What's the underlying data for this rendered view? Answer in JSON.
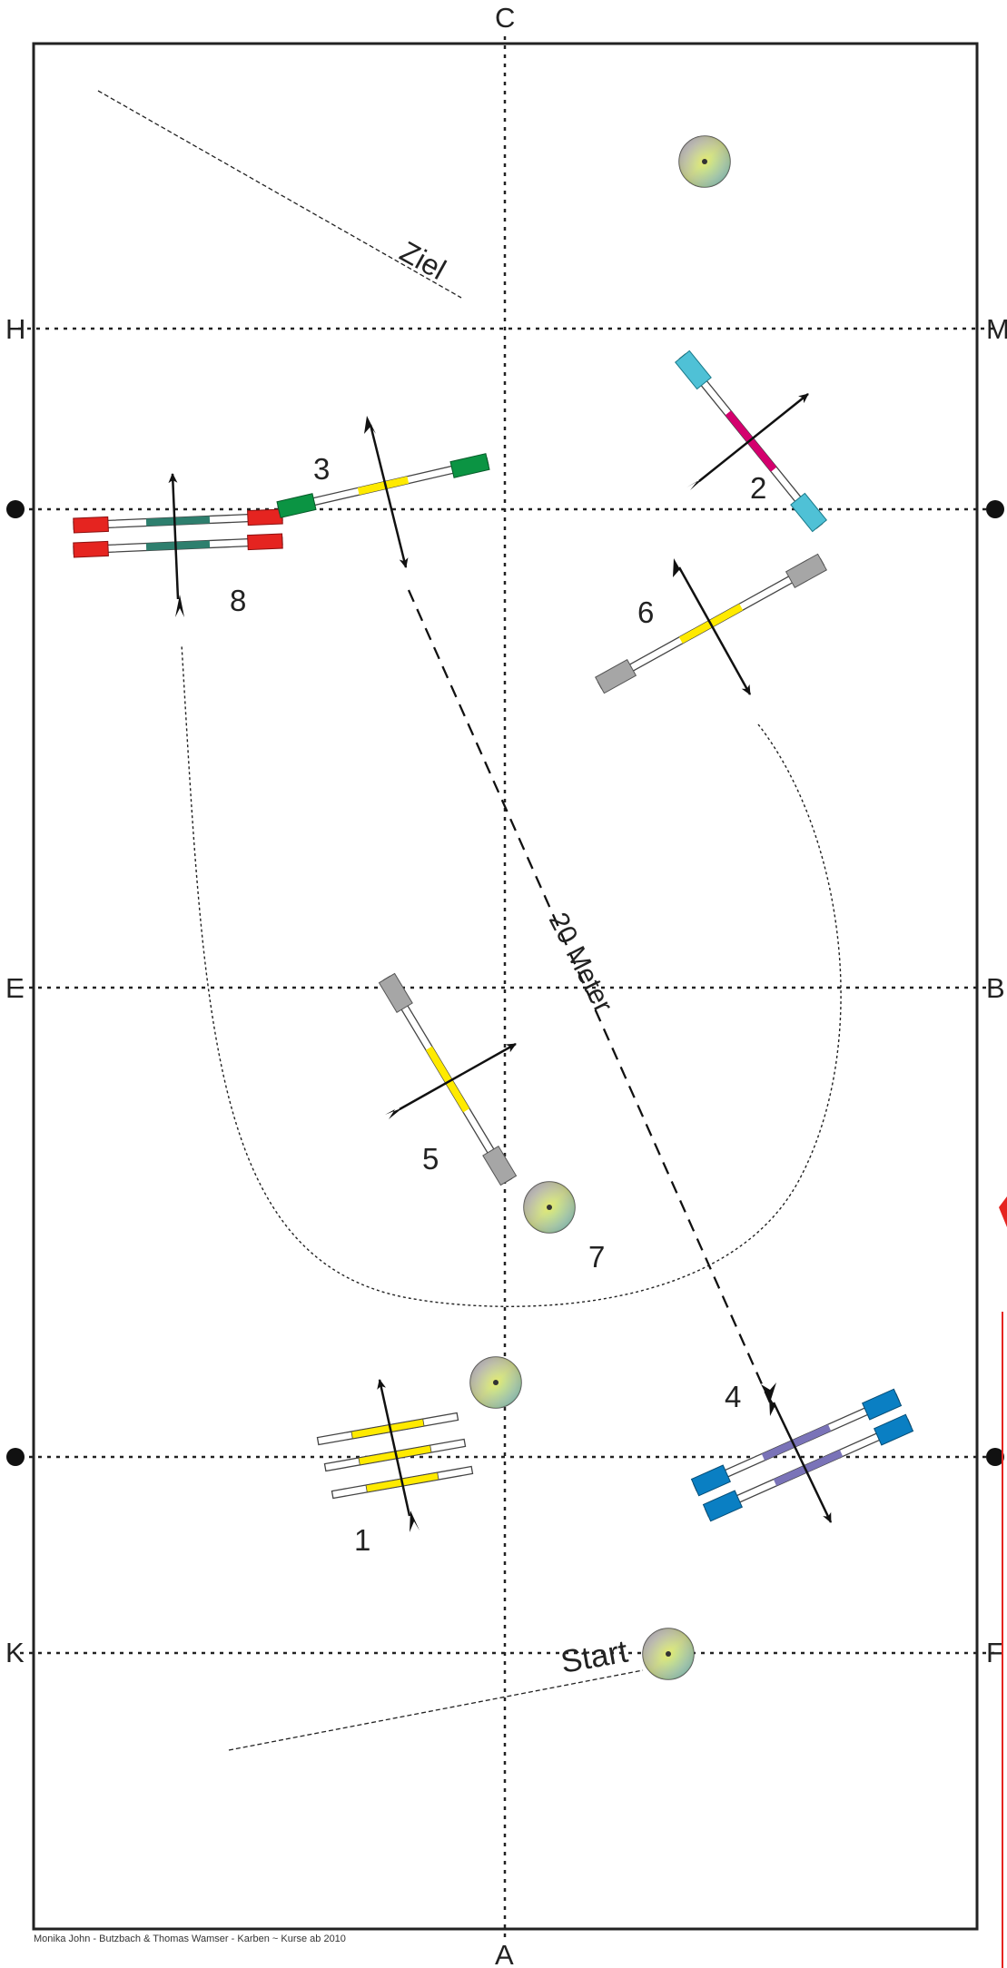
{
  "arena": {
    "letters": {
      "top": "C",
      "bottom": "A",
      "left_1": "H",
      "left_2": "E",
      "left_3": "K",
      "right_1": "M",
      "right_2": "B",
      "right_3": "F"
    }
  },
  "labels": {
    "finish": "Ziel",
    "start": "Start",
    "distance": "20 Meter"
  },
  "obstacle_numbers": [
    "1",
    "2",
    "3",
    "4",
    "5",
    "6",
    "7",
    "8"
  ],
  "pole_colors": {
    "yellow": "#ffea00",
    "magenta": "#d4006e",
    "cyan": "#4fc1d6",
    "green": "#0b9443",
    "red": "#e52420",
    "teal": "#2e7f6e",
    "blue": "#0a7fc3",
    "purple": "#7a73b8",
    "grey": "#a6a6a6"
  },
  "icons": [
    "cone-disc-icon",
    "arrow-icon"
  ],
  "credit": "Monika John - Butzbach & Thomas Wamser - Karben ~ Kurse ab 2010"
}
